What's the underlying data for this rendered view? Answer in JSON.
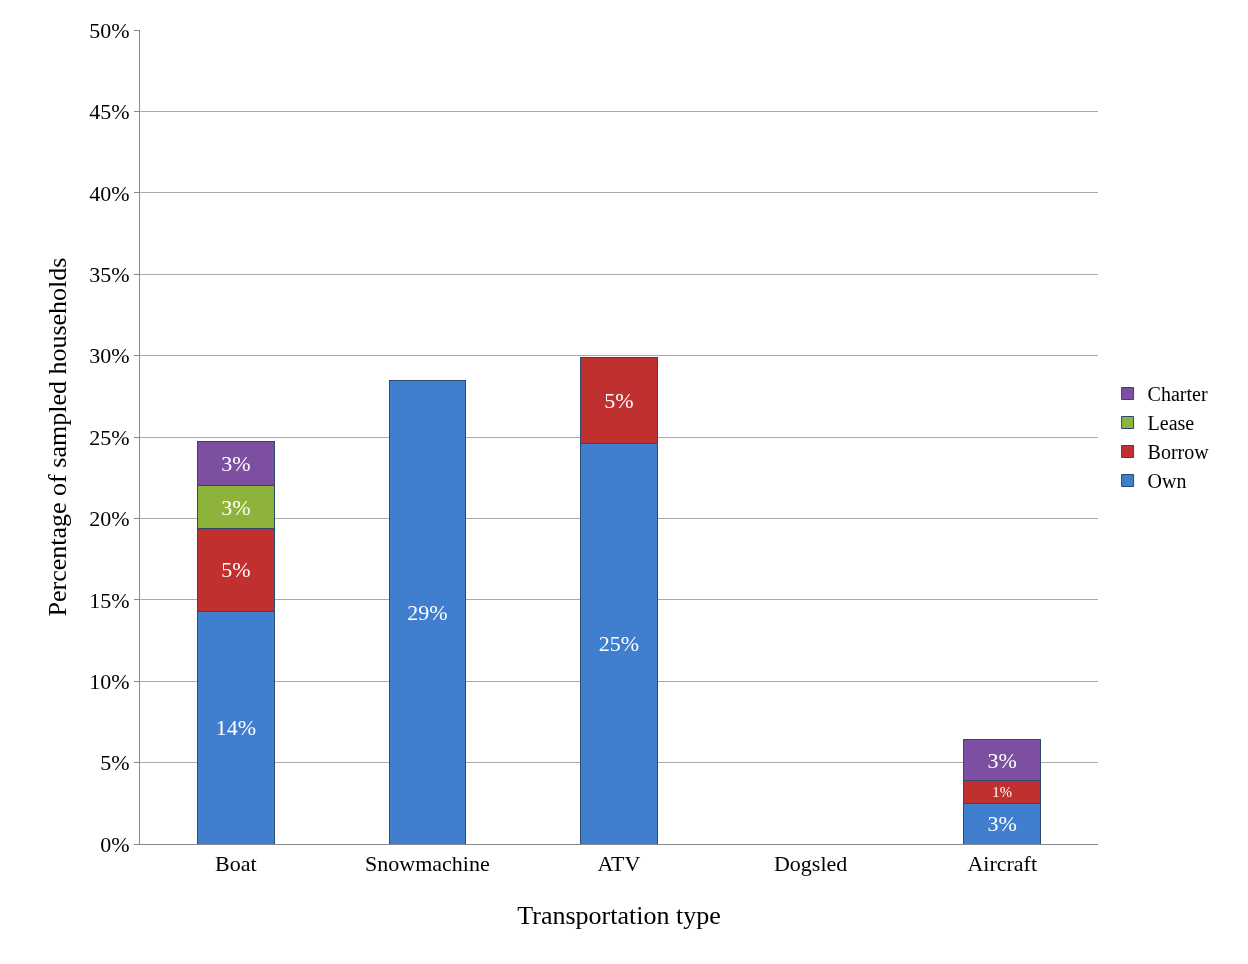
{
  "chart_data": {
    "type": "bar",
    "stacked": true,
    "xlabel": "Transportation type",
    "ylabel": "Percentage of sampled households",
    "categories": [
      "Boat",
      "Snowmachine",
      "ATV",
      "Dogsled",
      "Aircraft"
    ],
    "series": [
      {
        "name": "Own",
        "color": "#3f7fce",
        "values": [
          14.3,
          28.5,
          24.6,
          null,
          2.5
        ],
        "value_labels": [
          "14%",
          "29%",
          "25%",
          null,
          "3%"
        ]
      },
      {
        "name": "Borrow",
        "color": "#c0302f",
        "values": [
          5.1,
          null,
          5.3,
          null,
          1.4
        ],
        "value_labels": [
          "5%",
          null,
          "5%",
          null,
          "1%"
        ]
      },
      {
        "name": "Lease",
        "color": "#8db33a",
        "values": [
          2.6,
          null,
          null,
          null,
          null
        ],
        "value_labels": [
          "3%",
          null,
          null,
          null,
          null
        ]
      },
      {
        "name": "Charter",
        "color": "#7d4fa0",
        "values": [
          2.7,
          null,
          null,
          null,
          2.5
        ],
        "value_labels": [
          "3%",
          null,
          null,
          null,
          "3%"
        ]
      }
    ],
    "ylim": [
      0,
      50
    ],
    "yticks": [
      {
        "value": 0,
        "label": "0%"
      },
      {
        "value": 5,
        "label": "5%"
      },
      {
        "value": 10,
        "label": "10%"
      },
      {
        "value": 15,
        "label": "15%"
      },
      {
        "value": 20,
        "label": "20%"
      },
      {
        "value": 25,
        "label": "25%"
      },
      {
        "value": 30,
        "label": "30%"
      },
      {
        "value": 35,
        "label": "35%"
      },
      {
        "value": 40,
        "label": "40%"
      },
      {
        "value": 45,
        "label": "45%"
      },
      {
        "value": 50,
        "label": "50%"
      }
    ],
    "grid": "y",
    "legend": "right"
  }
}
